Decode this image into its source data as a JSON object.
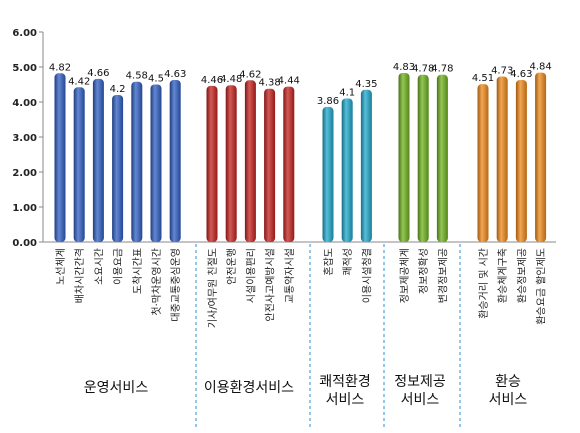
{
  "chart_data": {
    "type": "bar",
    "ylim": [
      0,
      6
    ],
    "yticks": [
      "0.00",
      "1.00",
      "2.00",
      "3.00",
      "4.00",
      "5.00",
      "6.00"
    ],
    "grid": false,
    "groups": [
      {
        "label_lines": [
          "운영서비스"
        ],
        "color": "#2f5fc4",
        "categories": [
          "노선체계",
          "배차시간간격",
          "소요시간",
          "이용요금",
          "도착시간표",
          "첫·막차운영시간",
          "대중교통중심운영"
        ],
        "values": [
          4.82,
          4.42,
          4.66,
          4.2,
          4.58,
          4.5,
          4.63
        ],
        "labels": [
          "4.82",
          "4.42",
          "4.66",
          "4.2",
          "4.58",
          "4.5",
          "4.63"
        ]
      },
      {
        "label_lines": [
          "이용환경서비스"
        ],
        "color": "#c4221f",
        "categories": [
          "기사/여무원 친절도",
          "안전운행",
          "시설이용편리",
          "안전사고예방시설",
          "교통약자시설"
        ],
        "values": [
          4.46,
          4.48,
          4.62,
          4.38,
          4.44
        ],
        "labels": [
          "4.46",
          "4.48",
          "4.62",
          "4.38",
          "4.44"
        ]
      },
      {
        "label_lines": [
          "쾌적환경",
          "서비스"
        ],
        "color": "#1fa8cc",
        "categories": [
          "혼잡도",
          "쾌적성",
          "이용시설청결"
        ],
        "values": [
          3.86,
          4.1,
          4.35
        ],
        "labels": [
          "3.86",
          "4.1",
          "4.35"
        ]
      },
      {
        "label_lines": [
          "정보제공",
          "서비스"
        ],
        "color": "#6fb21f",
        "categories": [
          "정보제공체계",
          "정보정확성",
          "변경정보제공"
        ],
        "values": [
          4.83,
          4.78,
          4.78
        ],
        "labels": [
          "4.83",
          "4.78",
          "4.78"
        ]
      },
      {
        "label_lines": [
          "환승",
          "서비스"
        ],
        "color": "#f08a1a",
        "categories": [
          "환승거리 및 시간",
          "환승체계구축",
          "환승정보제공",
          "환승요금 할인제도"
        ],
        "values": [
          4.51,
          4.73,
          4.63,
          4.84
        ],
        "labels": [
          "4.51",
          "4.73",
          "4.63",
          "4.84"
        ]
      }
    ]
  }
}
